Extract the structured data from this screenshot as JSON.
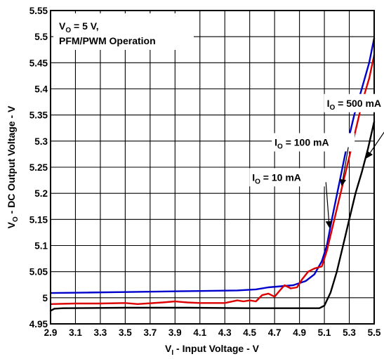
{
  "chart_data": {
    "type": "line",
    "title": "",
    "xlabel": {
      "main": "V",
      "sub": "I",
      "rest": " - Input Voltage - V"
    },
    "ylabel": {
      "main": "V",
      "sub": "O",
      "rest": " - DC Output Voltage - V"
    },
    "xlim": [
      2.9,
      5.5
    ],
    "ylim": [
      4.95,
      5.55
    ],
    "x_ticks": [
      "2.9",
      "3.1",
      "3.3",
      "3.5",
      "3.7",
      "3.9",
      "4.1",
      "4.3",
      "4.5",
      "4.7",
      "4.9",
      "5.1",
      "5.3",
      "5.5"
    ],
    "y_ticks": [
      "4.95",
      "5",
      "5.05",
      "5.1",
      "5.15",
      "5.2",
      "5.25",
      "5.3",
      "5.35",
      "5.4",
      "5.45",
      "5.5",
      "5.55"
    ],
    "grid": true,
    "conditions": {
      "line1_main": "V",
      "line1_sub": "O",
      "line1_rest": " = 5 V,",
      "line2": "PFM/PWM Operation"
    },
    "series": [
      {
        "name": "I_O = 500 mA",
        "label": {
          "main": "I",
          "sub": "O",
          "rest": " = 500 mA"
        },
        "color": "#0000cc",
        "points": [
          [
            2.9,
            5.009
          ],
          [
            3.2,
            5.01
          ],
          [
            3.5,
            5.011
          ],
          [
            3.8,
            5.012
          ],
          [
            4.1,
            5.013
          ],
          [
            4.4,
            5.014
          ],
          [
            4.55,
            5.016
          ],
          [
            4.65,
            5.02
          ],
          [
            4.75,
            5.022
          ],
          [
            4.85,
            5.024
          ],
          [
            4.95,
            5.032
          ],
          [
            5.02,
            5.045
          ],
          [
            5.08,
            5.07
          ],
          [
            5.12,
            5.1
          ],
          [
            5.16,
            5.15
          ],
          [
            5.22,
            5.22
          ],
          [
            5.28,
            5.29
          ],
          [
            5.34,
            5.35
          ],
          [
            5.4,
            5.4
          ],
          [
            5.46,
            5.45
          ],
          [
            5.5,
            5.497
          ]
        ]
      },
      {
        "name": "I_O = 100 mA",
        "label": {
          "main": "I",
          "sub": "O",
          "rest": " = 100 mA"
        },
        "color": "#dd0000",
        "points": [
          [
            2.9,
            4.988
          ],
          [
            3.1,
            4.989
          ],
          [
            3.3,
            4.989
          ],
          [
            3.5,
            4.99
          ],
          [
            3.6,
            4.988
          ],
          [
            3.8,
            4.991
          ],
          [
            3.9,
            4.993
          ],
          [
            4.0,
            4.991
          ],
          [
            4.1,
            4.99
          ],
          [
            4.3,
            4.99
          ],
          [
            4.4,
            4.995
          ],
          [
            4.45,
            4.993
          ],
          [
            4.5,
            4.995
          ],
          [
            4.55,
            4.993
          ],
          [
            4.6,
            5.005
          ],
          [
            4.65,
            5.008
          ],
          [
            4.7,
            5.002
          ],
          [
            4.75,
            5.016
          ],
          [
            4.78,
            5.024
          ],
          [
            4.83,
            5.018
          ],
          [
            4.88,
            5.02
          ],
          [
            4.92,
            5.035
          ],
          [
            4.97,
            5.05
          ],
          [
            5.02,
            5.056
          ],
          [
            5.08,
            5.06
          ],
          [
            5.12,
            5.09
          ],
          [
            5.17,
            5.14
          ],
          [
            5.23,
            5.2
          ],
          [
            5.29,
            5.26
          ],
          [
            5.35,
            5.32
          ],
          [
            5.41,
            5.38
          ],
          [
            5.46,
            5.42
          ],
          [
            5.5,
            5.465
          ]
        ]
      },
      {
        "name": "I_O = 10 mA",
        "label": {
          "main": "I",
          "sub": "O",
          "rest": " = 10 mA"
        },
        "color": "#000000",
        "points": [
          [
            2.9,
            4.975
          ],
          [
            2.93,
            4.979
          ],
          [
            3.0,
            4.98
          ],
          [
            3.5,
            4.981
          ],
          [
            4.0,
            4.981
          ],
          [
            4.5,
            4.98
          ],
          [
            5.0,
            4.98
          ],
          [
            5.06,
            4.98
          ],
          [
            5.1,
            4.985
          ],
          [
            5.15,
            5.01
          ],
          [
            5.2,
            5.05
          ],
          [
            5.25,
            5.1
          ],
          [
            5.3,
            5.15
          ],
          [
            5.35,
            5.2
          ],
          [
            5.4,
            5.24
          ],
          [
            5.45,
            5.285
          ],
          [
            5.5,
            5.337
          ]
        ]
      }
    ],
    "annotations": [
      {
        "series": 0,
        "text_at": [
          5.12,
          5.366
        ],
        "arrow_to": [
          5.44,
          5.268
        ]
      },
      {
        "series": 1,
        "text_at": [
          4.7,
          5.291
        ],
        "arrow_to": [
          5.24,
          5.215
        ]
      },
      {
        "series": 2,
        "text_at": [
          4.52,
          5.224
        ],
        "arrow_to": [
          5.14,
          5.135
        ]
      }
    ]
  }
}
